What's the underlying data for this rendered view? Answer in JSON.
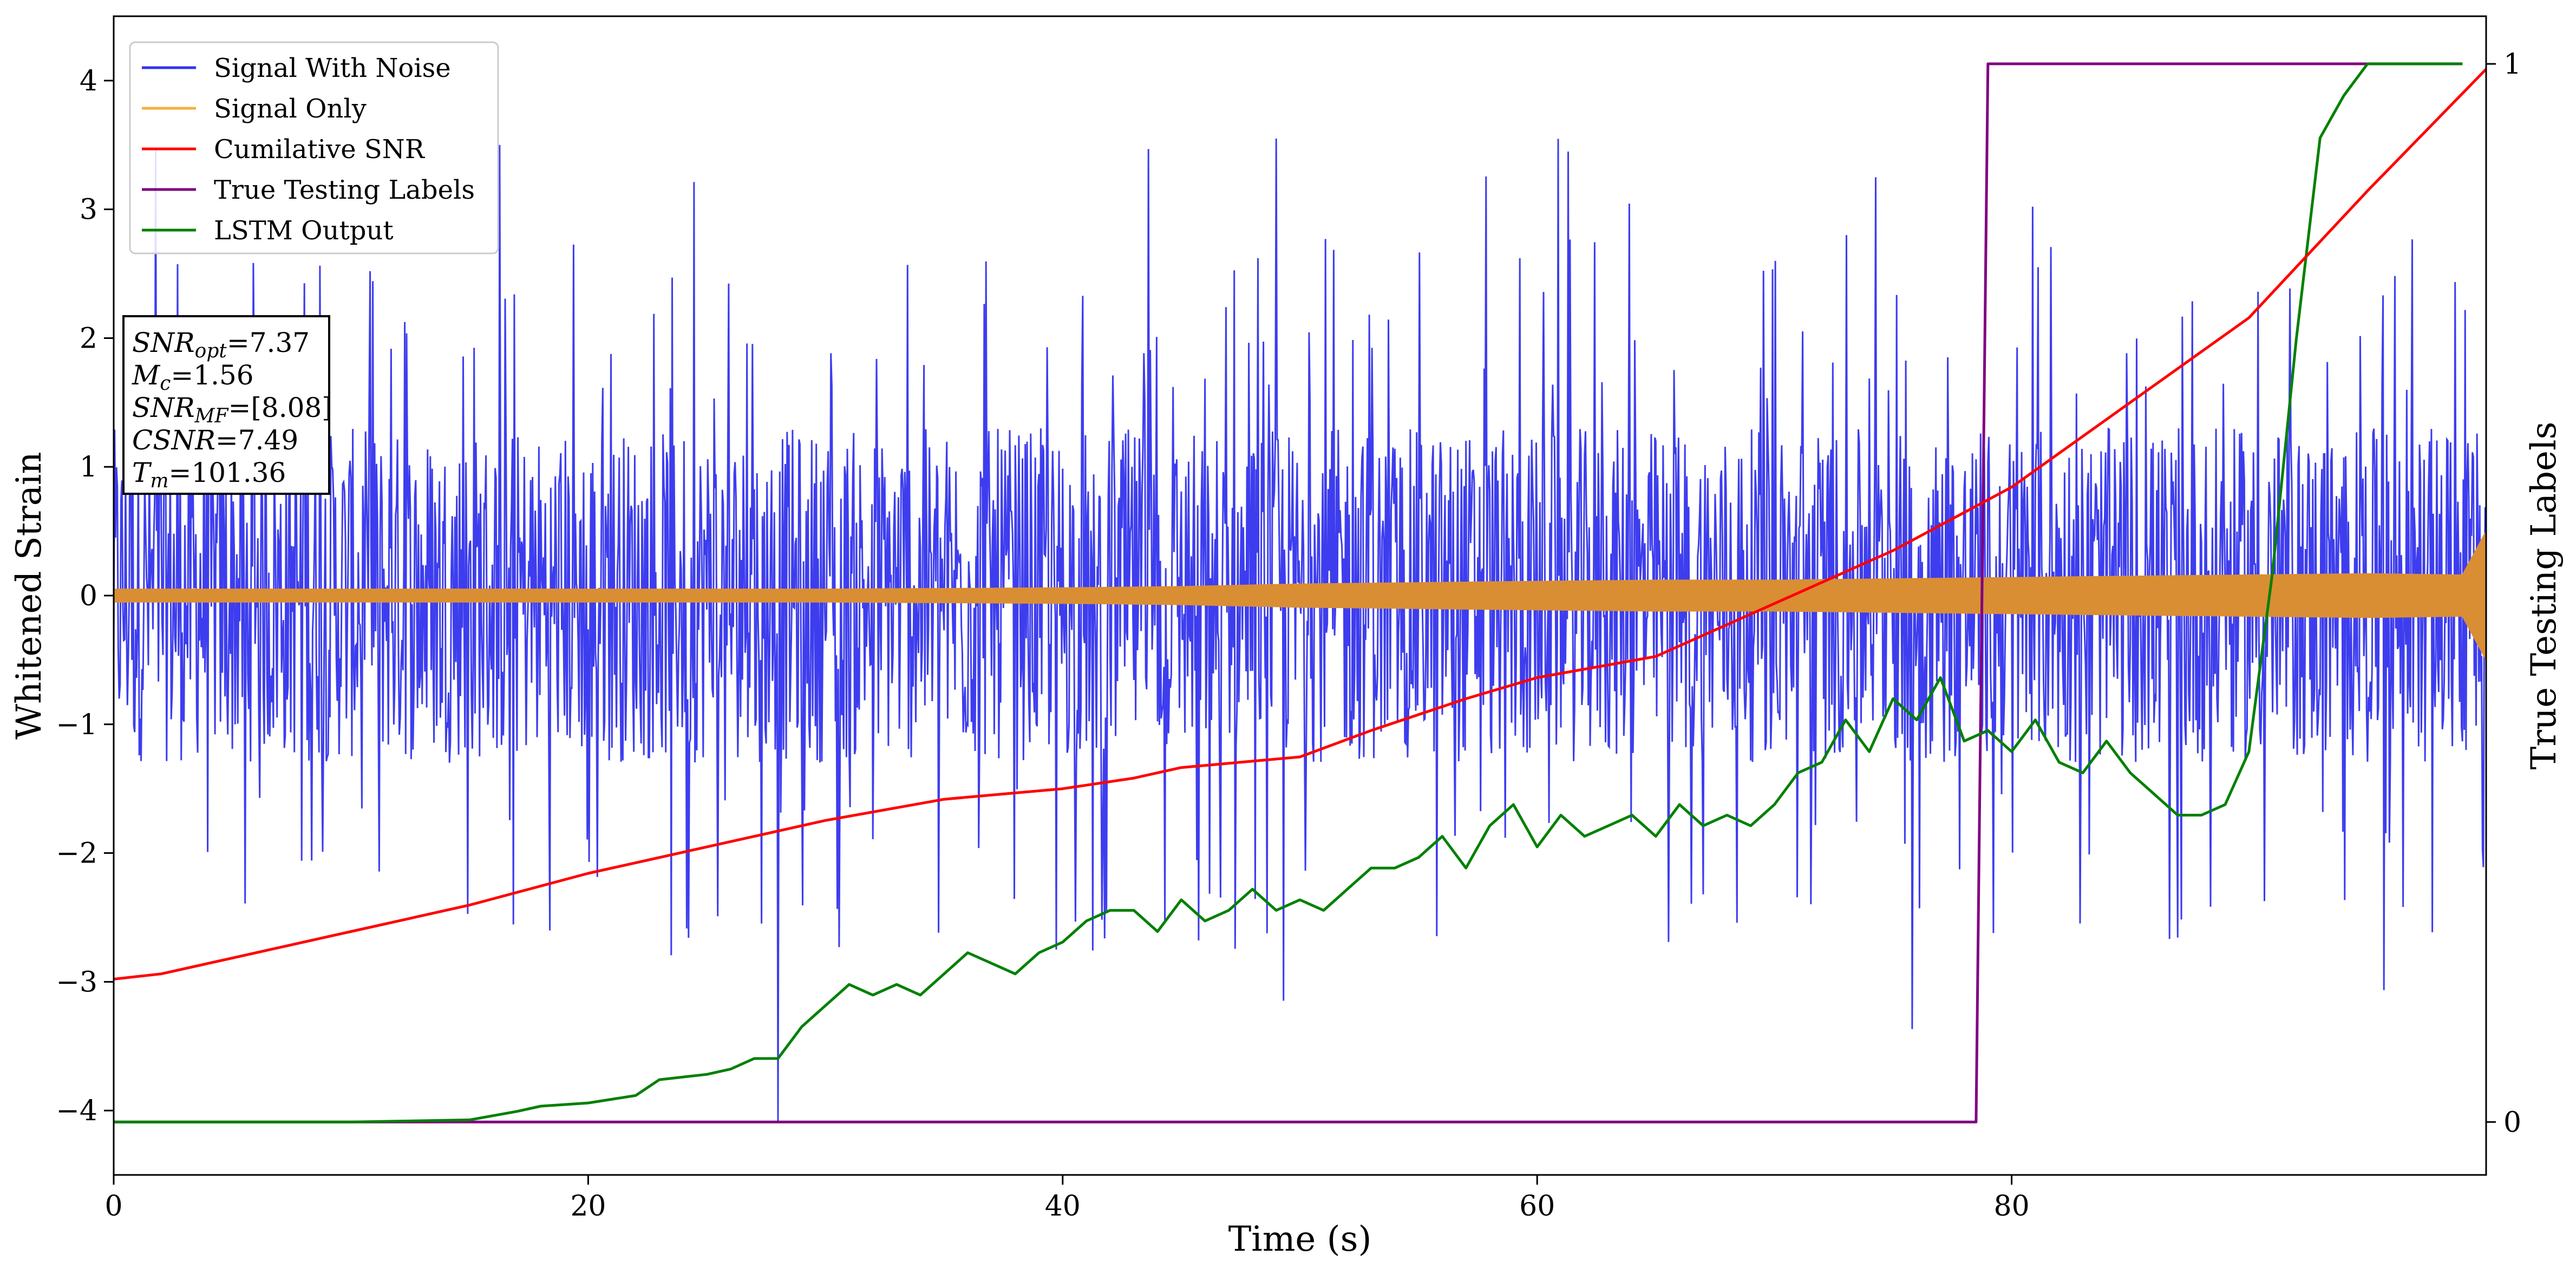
{
  "chart_data": {
    "type": "line",
    "xlabel": "Time (s)",
    "ylabel": "Whitened Strain",
    "y2label": "True Testing Labels",
    "xlim": [
      0,
      100
    ],
    "ylim": [
      -4.5,
      4.5
    ],
    "y2lim": [
      -0.05,
      1.045
    ],
    "xticks": [
      0,
      20,
      40,
      60,
      80
    ],
    "yticks": [
      -4,
      -3,
      -2,
      -1,
      0,
      1,
      2,
      3,
      4
    ],
    "y2ticks": [
      0,
      1
    ],
    "grid": false,
    "legend": {
      "position": "top-left",
      "entries": [
        {
          "label": "Signal With Noise",
          "color": "#3333ee"
        },
        {
          "label": "Signal Only",
          "color": "#f5b041"
        },
        {
          "label": "Cumilative SNR",
          "color": "#ff0000"
        },
        {
          "label": "True Testing Labels",
          "color": "#800080"
        },
        {
          "label": "LSTM Output",
          "color": "#008000"
        }
      ]
    },
    "annotation": [
      {
        "name": "SNR",
        "sub": "opt",
        "value": "=7.37"
      },
      {
        "name": "M",
        "sub": "c",
        "value": "=1.56"
      },
      {
        "name": "SNR",
        "sub": "MF",
        "value": "=[8.08]"
      },
      {
        "name": "CSNR",
        "sub": "",
        "value": "=7.49"
      },
      {
        "name": "T",
        "sub": "m",
        "value": "=101.36"
      }
    ],
    "series": [
      {
        "name": "Signal With Noise",
        "axis": "left",
        "color": "#3333ee",
        "noise_envelope": {
          "t": [
            0,
            100
          ],
          "typical_abs": 1.3,
          "peak_pos": 3.55,
          "peak_neg": -4.08
        }
      },
      {
        "name": "Signal Only",
        "axis": "left",
        "color": "#d98e33",
        "envelope": {
          "t": [
            0,
            10,
            20,
            30,
            40,
            45,
            50,
            55,
            60,
            65,
            70,
            75,
            80,
            85,
            90,
            95,
            99,
            100
          ],
          "amp": [
            0.05,
            0.05,
            0.05,
            0.05,
            0.06,
            0.07,
            0.09,
            0.1,
            0.11,
            0.12,
            0.12,
            0.13,
            0.14,
            0.15,
            0.16,
            0.17,
            0.16,
            0.5
          ]
        }
      },
      {
        "name": "Cumilative SNR",
        "axis": "right",
        "color": "#ff0000",
        "x": [
          0,
          2,
          5,
          10,
          15,
          20,
          25,
          30,
          35,
          40,
          43,
          45,
          50,
          53,
          57,
          60,
          65,
          70,
          75,
          80,
          85,
          90,
          95,
          100
        ],
        "y": [
          0.135,
          0.14,
          0.155,
          0.18,
          0.205,
          0.235,
          0.26,
          0.285,
          0.305,
          0.315,
          0.325,
          0.335,
          0.345,
          0.37,
          0.4,
          0.42,
          0.44,
          0.49,
          0.54,
          0.6,
          0.68,
          0.76,
          0.88,
          0.995
        ]
      },
      {
        "name": "True Testing Labels",
        "axis": "right",
        "color": "#800080",
        "x": [
          0,
          78.5,
          79.0,
          99.0
        ],
        "y": [
          0,
          0,
          1,
          1
        ]
      },
      {
        "name": "LSTM Output",
        "axis": "right",
        "color": "#008000",
        "x": [
          0,
          10,
          15,
          17,
          18,
          20,
          22,
          23,
          25,
          26,
          27,
          28,
          29,
          30,
          31,
          32,
          33,
          34,
          35,
          36,
          37,
          38,
          39,
          40,
          41,
          42,
          43,
          44,
          45,
          46,
          47,
          48,
          49,
          50,
          51,
          52,
          53,
          54,
          55,
          56,
          57,
          58,
          59,
          60,
          61,
          62,
          63,
          64,
          65,
          66,
          67,
          68,
          69,
          70,
          71,
          72,
          73,
          74,
          75,
          76,
          77,
          78,
          79,
          80,
          81,
          82,
          83,
          84,
          85,
          86,
          87,
          88,
          89,
          90,
          91,
          92,
          93,
          94,
          95,
          96,
          97,
          98,
          99
        ],
        "y": [
          0,
          0,
          0.002,
          0.01,
          0.015,
          0.018,
          0.025,
          0.04,
          0.045,
          0.05,
          0.06,
          0.06,
          0.09,
          0.11,
          0.13,
          0.12,
          0.13,
          0.12,
          0.14,
          0.16,
          0.15,
          0.14,
          0.16,
          0.17,
          0.19,
          0.2,
          0.2,
          0.18,
          0.21,
          0.19,
          0.2,
          0.22,
          0.2,
          0.21,
          0.2,
          0.22,
          0.24,
          0.24,
          0.25,
          0.27,
          0.24,
          0.28,
          0.3,
          0.26,
          0.29,
          0.27,
          0.28,
          0.29,
          0.27,
          0.3,
          0.28,
          0.29,
          0.28,
          0.3,
          0.33,
          0.34,
          0.38,
          0.35,
          0.4,
          0.38,
          0.42,
          0.36,
          0.37,
          0.35,
          0.38,
          0.34,
          0.33,
          0.36,
          0.33,
          0.31,
          0.29,
          0.29,
          0.3,
          0.35,
          0.52,
          0.74,
          0.93,
          0.97,
          1.0,
          1.0,
          1.0,
          1.0,
          1.0
        ]
      }
    ]
  }
}
